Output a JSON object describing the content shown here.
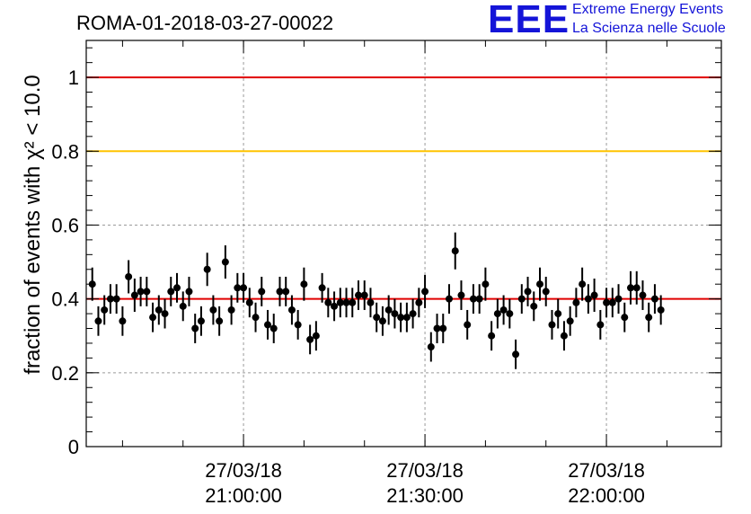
{
  "title": "ROMA-01-2018-03-27-00022",
  "logo": {
    "mark": "EEE",
    "line1": "Extreme Energy Events",
    "line2": "La Scienza nelle Scuole"
  },
  "chart_data": {
    "type": "scatter",
    "title": "ROMA-01-2018-03-27-00022",
    "ylabel": "fraction of events with χ² < 10.0",
    "xlabel": "",
    "x_unit": "time (27/03/18)",
    "ylim": [
      0,
      1.1
    ],
    "xlim": [
      "20:34:00",
      "22:19:00"
    ],
    "y_ticks": [
      0,
      0.2,
      0.4,
      0.6,
      0.8,
      1
    ],
    "y_tick_labels": [
      "0",
      "0.2",
      "0.4",
      "0.6",
      "0.8",
      "1"
    ],
    "x_ticks": [
      {
        "date": "27/03/18",
        "time": "21:00:00"
      },
      {
        "date": "27/03/18",
        "time": "21:30:00"
      },
      {
        "date": "27/03/18",
        "time": "22:00:00"
      }
    ],
    "grid": true,
    "reference_lines": [
      {
        "y": 1.0,
        "color": "#e00000"
      },
      {
        "y": 0.8,
        "color": "#ffc400"
      },
      {
        "y": 0.4,
        "color": "#e00000"
      }
    ],
    "marker_color": "#000000",
    "bin_minutes": 1,
    "x_start": "20:35:00",
    "series": [
      {
        "values": [
          0.44,
          0.34,
          0.37,
          0.4,
          0.4,
          0.34,
          0.46,
          0.41,
          0.42,
          0.42,
          0.35,
          0.37,
          0.36,
          0.42,
          0.43,
          0.38,
          0.42,
          0.32,
          0.34,
          0.48,
          0.37,
          0.34,
          0.5,
          0.37,
          0.43,
          0.43,
          0.39,
          0.35,
          0.42,
          0.33,
          0.32,
          0.42,
          0.42,
          0.37,
          0.33,
          0.44,
          0.29,
          0.3,
          0.43,
          0.39,
          0.38,
          0.39,
          0.39,
          0.39,
          0.41,
          0.41,
          0.39,
          0.35,
          0.34,
          0.37,
          0.36,
          0.35,
          0.35,
          0.36,
          0.39,
          0.42,
          0.27,
          0.32,
          0.32,
          0.4,
          0.53,
          0.41,
          0.33,
          0.4,
          0.4,
          0.44,
          0.3,
          0.36,
          0.37,
          0.36,
          0.25,
          0.4,
          0.42,
          0.38,
          0.44,
          0.42,
          0.33,
          0.36,
          0.3,
          0.34,
          0.39,
          0.44,
          0.4,
          0.41,
          0.33,
          0.39,
          0.39,
          0.4,
          0.35,
          0.43,
          0.43,
          0.41,
          0.35,
          0.4,
          0.37
        ],
        "errors": [
          0.045,
          0.04,
          0.04,
          0.04,
          0.04,
          0.04,
          0.045,
          0.045,
          0.04,
          0.04,
          0.04,
          0.04,
          0.04,
          0.04,
          0.04,
          0.04,
          0.04,
          0.04,
          0.04,
          0.045,
          0.04,
          0.04,
          0.045,
          0.04,
          0.04,
          0.04,
          0.04,
          0.04,
          0.04,
          0.04,
          0.04,
          0.04,
          0.04,
          0.04,
          0.04,
          0.045,
          0.04,
          0.04,
          0.04,
          0.04,
          0.04,
          0.04,
          0.04,
          0.04,
          0.04,
          0.04,
          0.04,
          0.04,
          0.04,
          0.04,
          0.04,
          0.04,
          0.04,
          0.04,
          0.04,
          0.045,
          0.04,
          0.04,
          0.04,
          0.04,
          0.05,
          0.04,
          0.04,
          0.04,
          0.04,
          0.045,
          0.04,
          0.04,
          0.04,
          0.04,
          0.04,
          0.04,
          0.04,
          0.04,
          0.045,
          0.04,
          0.04,
          0.04,
          0.04,
          0.04,
          0.04,
          0.045,
          0.04,
          0.045,
          0.04,
          0.04,
          0.04,
          0.04,
          0.04,
          0.045,
          0.045,
          0.04,
          0.04,
          0.04,
          0.04
        ]
      }
    ]
  }
}
